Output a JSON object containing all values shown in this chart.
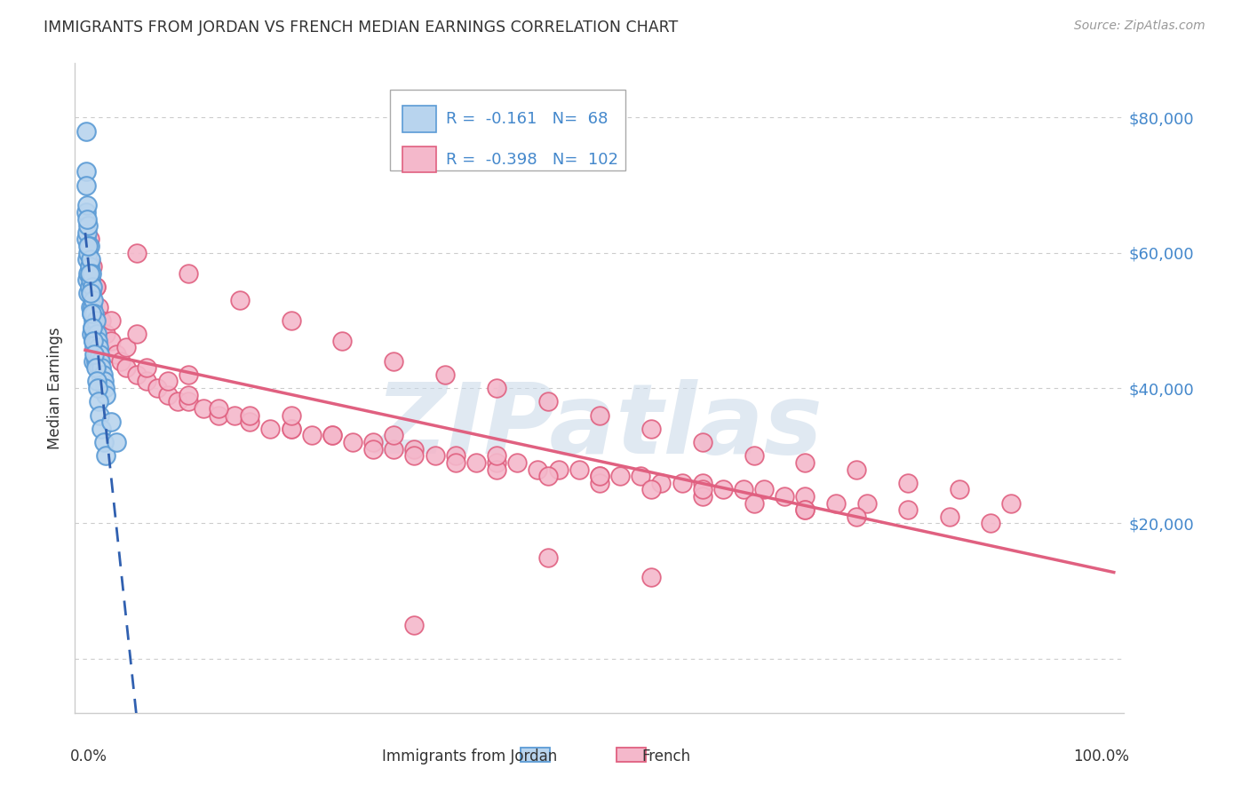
{
  "title": "IMMIGRANTS FROM JORDAN VS FRENCH MEDIAN EARNINGS CORRELATION CHART",
  "source": "Source: ZipAtlas.com",
  "ylabel": "Median Earnings",
  "ymin": -8000,
  "ymax": 88000,
  "xmin": -0.01,
  "xmax": 1.01,
  "legend_blue_r": "-0.161",
  "legend_blue_n": "68",
  "legend_pink_r": "-0.398",
  "legend_pink_n": "102",
  "legend_label_blue": "Immigrants from Jordan",
  "legend_label_pink": "French",
  "watermark": "ZIPatlas",
  "blue_fill": "#b8d4ee",
  "blue_edge": "#5b9bd5",
  "pink_fill": "#f4b8cb",
  "pink_edge": "#e06080",
  "blue_line_color": "#3060b0",
  "pink_line_color": "#e06080",
  "dashed_color": "#b0b0b0",
  "bg_color": "#ffffff",
  "grid_color": "#cccccc",
  "spine_color": "#cccccc",
  "title_color": "#333333",
  "source_color": "#999999",
  "right_label_color": "#4488cc",
  "ytick_vals": [
    0,
    20000,
    40000,
    60000,
    80000
  ],
  "blue_x": [
    0.001,
    0.001,
    0.001,
    0.001,
    0.001,
    0.002,
    0.002,
    0.002,
    0.002,
    0.003,
    0.003,
    0.003,
    0.003,
    0.004,
    0.004,
    0.004,
    0.005,
    0.005,
    0.005,
    0.006,
    0.006,
    0.006,
    0.006,
    0.007,
    0.007,
    0.007,
    0.008,
    0.008,
    0.008,
    0.008,
    0.009,
    0.009,
    0.009,
    0.01,
    0.01,
    0.01,
    0.011,
    0.011,
    0.012,
    0.012,
    0.013,
    0.013,
    0.014,
    0.015,
    0.015,
    0.016,
    0.017,
    0.018,
    0.019,
    0.02,
    0.002,
    0.003,
    0.004,
    0.005,
    0.006,
    0.007,
    0.008,
    0.009,
    0.01,
    0.011,
    0.012,
    0.013,
    0.014,
    0.016,
    0.018,
    0.02,
    0.025,
    0.03
  ],
  "blue_y": [
    78000,
    72000,
    70000,
    66000,
    62000,
    67000,
    63000,
    59000,
    56000,
    64000,
    60000,
    57000,
    54000,
    61000,
    58000,
    55000,
    59000,
    56000,
    52000,
    57000,
    54000,
    51000,
    48000,
    55000,
    52000,
    49000,
    53000,
    50000,
    47000,
    44000,
    51000,
    48000,
    46000,
    50000,
    47000,
    44000,
    48000,
    45000,
    47000,
    44000,
    46000,
    43000,
    45000,
    44000,
    42000,
    43000,
    42000,
    41000,
    40000,
    39000,
    65000,
    61000,
    57000,
    54000,
    51000,
    49000,
    47000,
    45000,
    43000,
    41000,
    40000,
    38000,
    36000,
    34000,
    32000,
    30000,
    35000,
    32000
  ],
  "pink_x": [
    0.004,
    0.007,
    0.01,
    0.013,
    0.016,
    0.02,
    0.025,
    0.03,
    0.035,
    0.04,
    0.05,
    0.06,
    0.07,
    0.08,
    0.09,
    0.1,
    0.115,
    0.13,
    0.145,
    0.16,
    0.18,
    0.2,
    0.22,
    0.24,
    0.26,
    0.28,
    0.3,
    0.32,
    0.34,
    0.36,
    0.38,
    0.4,
    0.42,
    0.44,
    0.46,
    0.48,
    0.5,
    0.52,
    0.54,
    0.56,
    0.58,
    0.6,
    0.62,
    0.64,
    0.66,
    0.68,
    0.7,
    0.73,
    0.76,
    0.8,
    0.84,
    0.88,
    0.025,
    0.04,
    0.06,
    0.08,
    0.1,
    0.13,
    0.16,
    0.2,
    0.24,
    0.28,
    0.32,
    0.36,
    0.4,
    0.45,
    0.5,
    0.55,
    0.6,
    0.65,
    0.7,
    0.75,
    0.32,
    0.01,
    0.05,
    0.1,
    0.2,
    0.3,
    0.4,
    0.5,
    0.6,
    0.7,
    0.05,
    0.1,
    0.15,
    0.2,
    0.25,
    0.3,
    0.35,
    0.4,
    0.45,
    0.5,
    0.55,
    0.6,
    0.65,
    0.7,
    0.75,
    0.8,
    0.85,
    0.9,
    0.45,
    0.55
  ],
  "pink_y": [
    62000,
    58000,
    55000,
    52000,
    50000,
    48000,
    47000,
    45000,
    44000,
    43000,
    42000,
    41000,
    40000,
    39000,
    38000,
    38000,
    37000,
    36000,
    36000,
    35000,
    34000,
    34000,
    33000,
    33000,
    32000,
    32000,
    31000,
    31000,
    30000,
    30000,
    29000,
    29000,
    29000,
    28000,
    28000,
    28000,
    27000,
    27000,
    27000,
    26000,
    26000,
    26000,
    25000,
    25000,
    25000,
    24000,
    24000,
    23000,
    23000,
    22000,
    21000,
    20000,
    50000,
    46000,
    43000,
    41000,
    39000,
    37000,
    36000,
    34000,
    33000,
    31000,
    30000,
    29000,
    28000,
    27000,
    26000,
    25000,
    24000,
    23000,
    22000,
    21000,
    5000,
    55000,
    48000,
    42000,
    36000,
    33000,
    30000,
    27000,
    25000,
    22000,
    60000,
    57000,
    53000,
    50000,
    47000,
    44000,
    42000,
    40000,
    38000,
    36000,
    34000,
    32000,
    30000,
    29000,
    28000,
    26000,
    25000,
    23000,
    15000,
    12000
  ]
}
